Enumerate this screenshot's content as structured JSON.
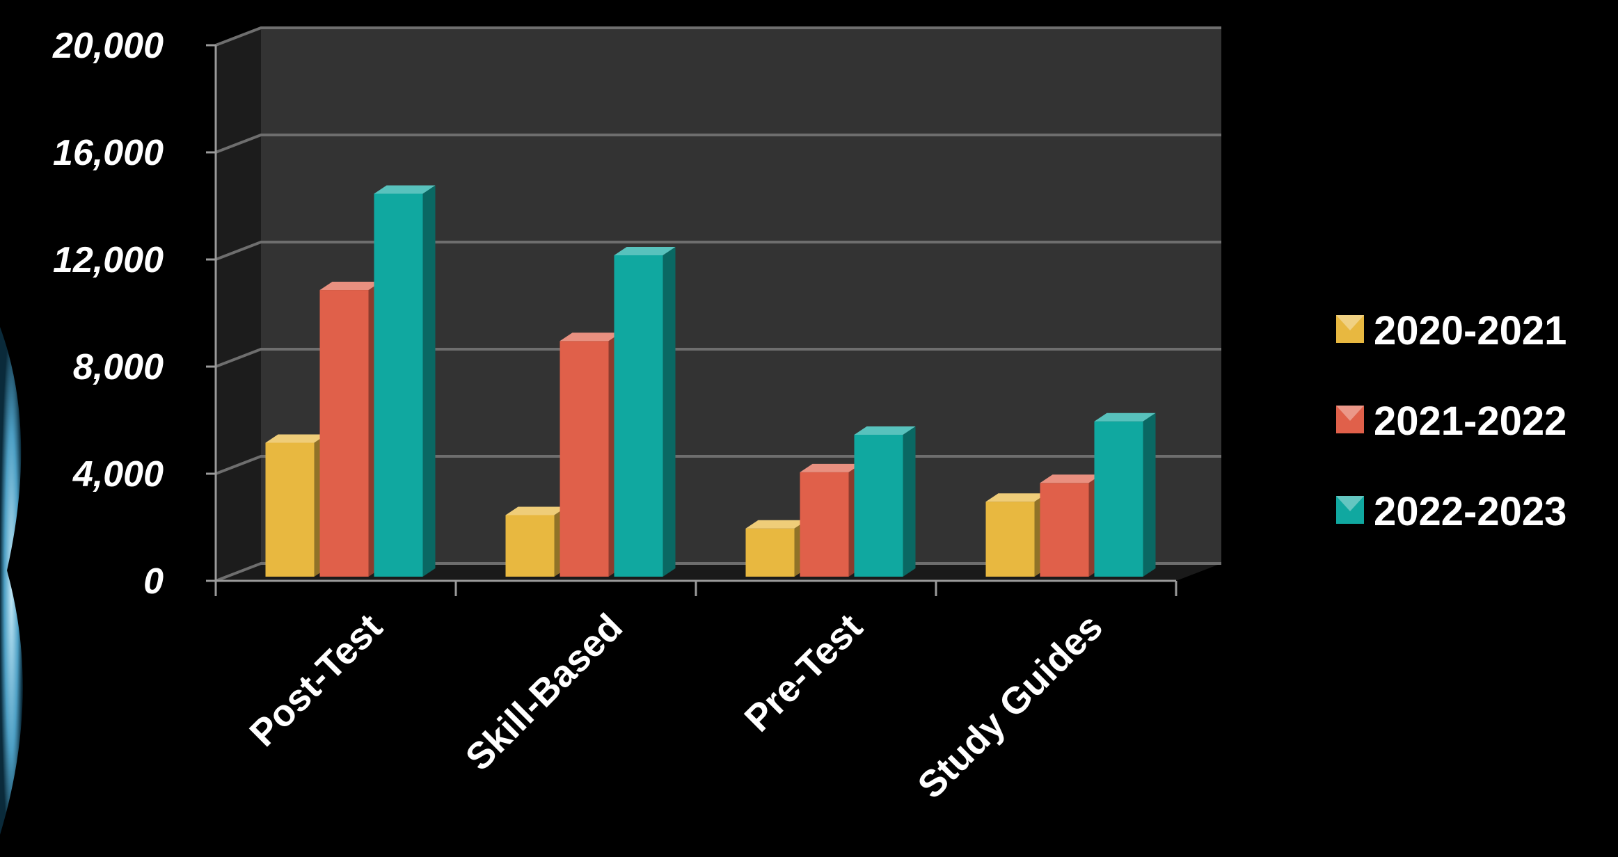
{
  "chart_data": {
    "type": "bar",
    "categories": [
      "Post-Test",
      "Skill-Based",
      "Pre-Test",
      "Study Guides"
    ],
    "series": [
      {
        "name": "2020-2021",
        "values": [
          5000,
          2300,
          1800,
          2800
        ],
        "color": "#e8b840"
      },
      {
        "name": "2021-2022",
        "values": [
          10700,
          8800,
          3900,
          3500
        ],
        "color": "#e0604a"
      },
      {
        "name": "2022-2023",
        "values": [
          14300,
          12000,
          5300,
          5800
        ],
        "color": "#10a8a0"
      }
    ],
    "ylim": [
      0,
      20000
    ],
    "yticks": [
      0,
      4000,
      8000,
      12000,
      16000,
      20000
    ],
    "ytick_labels": [
      "0",
      "4,000",
      "8,000",
      "12,000",
      "16,000",
      "20,000"
    ],
    "grid": true,
    "legend": "right",
    "style": "3d-bar",
    "background": "#000000",
    "back_wall_color": "#333333",
    "side_wall_color": "#1c1c1c",
    "gridline_color": "#6e6e6e"
  }
}
